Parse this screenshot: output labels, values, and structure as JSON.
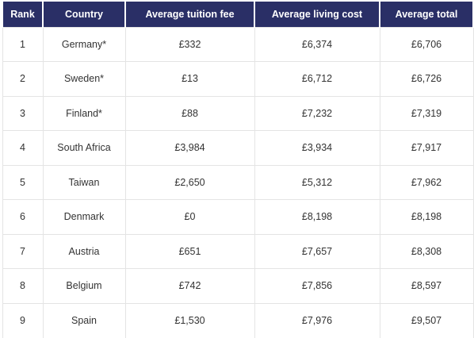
{
  "table": {
    "headers": [
      "Rank",
      "Country",
      "Average tuition fee",
      "Average living cost",
      "Average total"
    ],
    "rows": [
      [
        "1",
        "Germany*",
        "£332",
        "£6,374",
        "£6,706"
      ],
      [
        "2",
        "Sweden*",
        "£13",
        "£6,712",
        "£6,726"
      ],
      [
        "3",
        "Finland*",
        "£88",
        "£7,232",
        "£7,319"
      ],
      [
        "4",
        "South Africa",
        "£3,984",
        "£3,934",
        "£7,917"
      ],
      [
        "5",
        "Taiwan",
        "£2,650",
        "£5,312",
        "£7,962"
      ],
      [
        "6",
        "Denmark",
        "£0",
        "£8,198",
        "£8,198"
      ],
      [
        "7",
        "Austria",
        "£651",
        "£7,657",
        "£8,308"
      ],
      [
        "8",
        "Belgium",
        "£742",
        "£7,856",
        "£8,597"
      ],
      [
        "9",
        "Spain",
        "£1,530",
        "£7,976",
        "£9,507"
      ]
    ],
    "colors": {
      "header_bg": "#2a2f66",
      "header_text": "#ffffff",
      "cell_text": "#333333",
      "grid": "#e4e4e4"
    }
  }
}
